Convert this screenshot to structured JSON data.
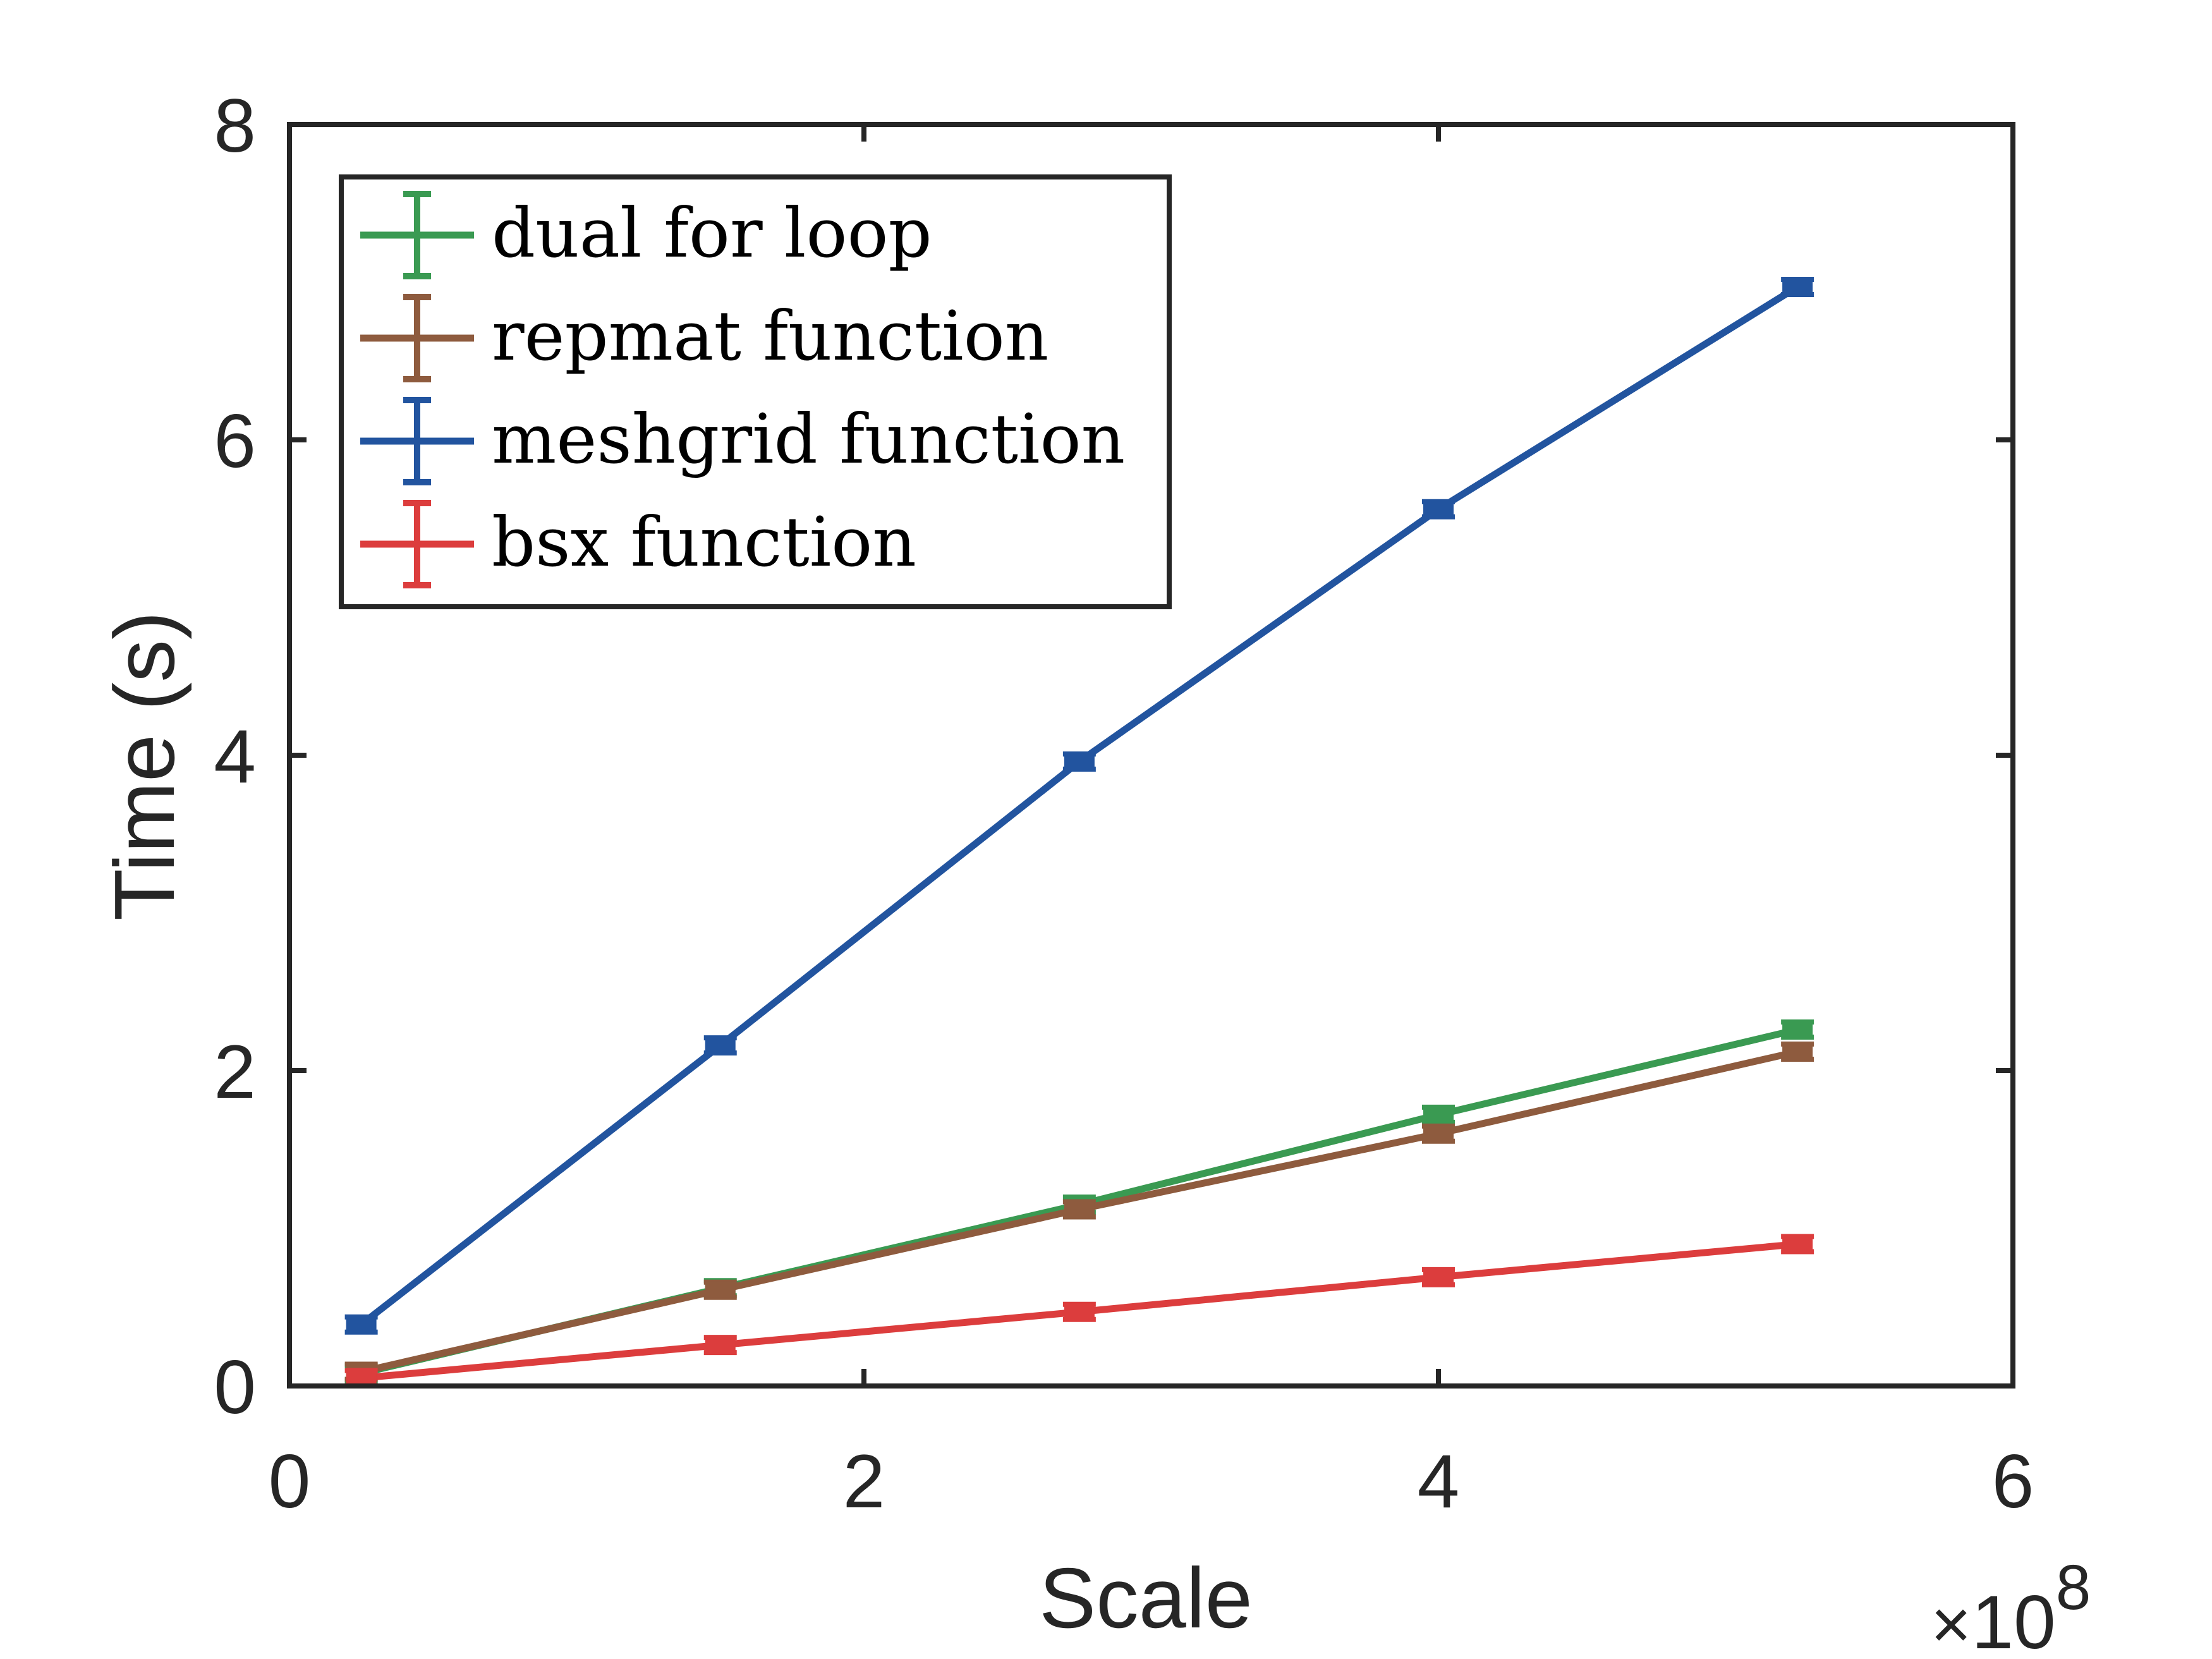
{
  "chart_data": {
    "type": "line",
    "xlabel": "Scale",
    "ylabel": "Time (s)",
    "x_multiplier": {
      "base": "10",
      "exponent": "8",
      "prefix": "×"
    },
    "xlim": [
      0,
      6
    ],
    "ylim": [
      0,
      8
    ],
    "x_ticks": [
      0,
      2,
      4,
      6
    ],
    "y_ticks": [
      0,
      2,
      4,
      6,
      8
    ],
    "x_tick_labels": [
      "0",
      "2",
      "4",
      "6"
    ],
    "y_tick_labels": [
      "0",
      "2",
      "4",
      "6",
      "8"
    ],
    "grid": false,
    "legend_position": "top-left",
    "x": [
      0.25,
      1.5,
      2.75,
      4.0,
      5.25
    ],
    "series": [
      {
        "name": "dual for loop",
        "color": "#3a9a52",
        "values": [
          0.08,
          0.62,
          1.15,
          1.72,
          2.26
        ]
      },
      {
        "name": "repmat function",
        "color": "#8e5b3e",
        "values": [
          0.09,
          0.61,
          1.12,
          1.6,
          2.12
        ]
      },
      {
        "name": "meshgrid function",
        "color": "#22549f",
        "values": [
          0.39,
          2.16,
          3.96,
          5.56,
          6.97
        ]
      },
      {
        "name": "bsx function",
        "color": "#dc3d3d",
        "values": [
          0.05,
          0.26,
          0.47,
          0.69,
          0.9
        ]
      }
    ]
  }
}
